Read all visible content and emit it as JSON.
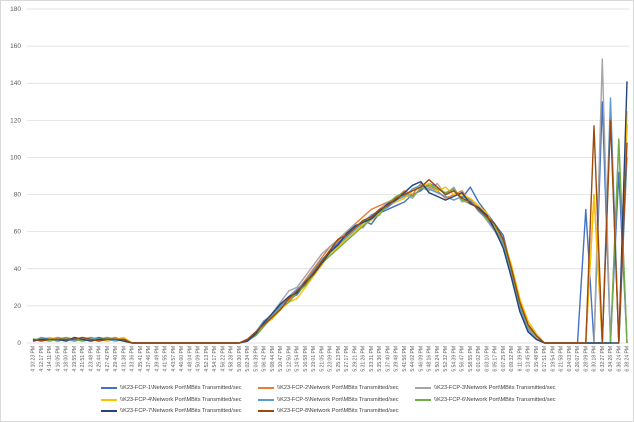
{
  "chart_data": {
    "type": "line",
    "title": "",
    "xlabel": "",
    "ylabel": "",
    "ylim": [
      0,
      180
    ],
    "y_ticks": [
      "0",
      "20",
      "40",
      "60",
      "80",
      "100",
      "120",
      "140",
      "160",
      "180"
    ],
    "grid": "horizontal",
    "legend_position": "bottom",
    "x_tick_labels": [
      "4:10:23 PM",
      "4:12:17 PM",
      "4:14:11 PM",
      "4:16:05 PM",
      "4:18:00 PM",
      "4:19:55 PM",
      "4:21:51 PM",
      "4:23:48 PM",
      "4:25:44 PM",
      "4:27:42 PM",
      "4:29:40 PM",
      "4:31:38 PM",
      "4:33:36 PM",
      "4:35:41 PM",
      "4:37:46 PM",
      "4:39:49 PM",
      "4:41:55 PM",
      "4:43:57 PM",
      "4:46:00 PM",
      "4:48:04 PM",
      "4:50:09 PM",
      "4:52:13 PM",
      "4:54:17 PM",
      "4:56:22 PM",
      "4:58:28 PM",
      "5:00:30 PM",
      "5:02:34 PM",
      "5:04:39 PM",
      "5:06:42 PM",
      "5:08:44 PM",
      "5:10:47 PM",
      "5:12:50 PM",
      "5:14:54 PM",
      "5:16:58 PM",
      "5:19:01 PM",
      "5:21:05 PM",
      "5:23:09 PM",
      "5:25:13 PM",
      "5:27:17 PM",
      "5:29:21 PM",
      "5:31:26 PM",
      "5:33:31 PM",
      "5:35:36 PM",
      "5:37:40 PM",
      "5:39:48 PM",
      "5:41:56 PM",
      "5:44:02 PM",
      "5:46:09 PM",
      "5:48:16 PM",
      "5:50:24 PM",
      "5:52:32 PM",
      "5:54:39 PM",
      "5:56:47 PM",
      "5:58:55 PM",
      "6:01:02 PM",
      "6:03:10 PM",
      "6:05:17 PM",
      "6:07:25 PM",
      "6:09:32 PM",
      "6:11:39 PM",
      "6:13:45 PM",
      "6:15:48 PM",
      "6:17:51 PM",
      "6:19:54 PM",
      "6:21:58 PM",
      "6:24:03 PM",
      "6:26:07 PM",
      "6:28:09 PM",
      "6:30:18 PM",
      "6:32:27 PM",
      "6:34:26 PM",
      "6:36:24 PM",
      "6:38:24 PM"
    ],
    "series": [
      {
        "name": "\\\\K23-FCP-1\\Network Port\\MBits Transmitted/sec",
        "color": "#4472c4",
        "values": [
          1,
          2,
          2,
          1,
          2,
          2,
          1,
          2,
          3,
          2,
          2,
          1,
          0,
          0,
          0,
          0,
          0,
          0,
          0,
          0,
          0,
          0,
          0,
          0,
          0,
          0,
          1,
          5,
          10,
          14,
          20,
          24,
          26,
          32,
          38,
          44,
          50,
          54,
          58,
          62,
          66,
          64,
          70,
          72,
          74,
          76,
          80,
          82,
          86,
          84,
          80,
          82,
          78,
          84,
          76,
          70,
          64,
          58,
          40,
          22,
          10,
          4,
          0,
          0,
          0,
          0,
          0,
          72,
          0,
          130,
          0,
          92,
          0
        ]
      },
      {
        "name": "\\\\K23-FCP-2\\Network Port\\MBits Transmitted/sec",
        "color": "#ed7d31",
        "values": [
          2,
          1,
          2,
          3,
          2,
          1,
          2,
          2,
          1,
          2,
          3,
          1,
          0,
          0,
          0,
          0,
          0,
          0,
          0,
          0,
          0,
          0,
          0,
          0,
          0,
          0,
          2,
          6,
          11,
          15,
          21,
          23,
          28,
          34,
          40,
          46,
          52,
          55,
          60,
          64,
          68,
          72,
          74,
          76,
          78,
          82,
          80,
          86,
          84,
          82,
          78,
          80,
          82,
          76,
          74,
          68,
          62,
          54,
          36,
          18,
          8,
          2,
          0,
          0,
          0,
          0,
          0,
          0,
          80,
          0,
          126,
          0,
          118
        ]
      },
      {
        "name": "\\\\K23-FCP-3\\Network Port\\MBits Transmitted/sec",
        "color": "#a5a5a5",
        "values": [
          1,
          2,
          1,
          2,
          1,
          2,
          2,
          1,
          2,
          1,
          2,
          2,
          0,
          0,
          0,
          0,
          0,
          0,
          0,
          0,
          0,
          0,
          0,
          0,
          0,
          0,
          1,
          4,
          9,
          16,
          22,
          28,
          30,
          36,
          42,
          48,
          52,
          56,
          60,
          64,
          62,
          68,
          72,
          76,
          78,
          80,
          78,
          84,
          82,
          86,
          80,
          84,
          76,
          78,
          72,
          66,
          60,
          52,
          38,
          20,
          9,
          3,
          0,
          0,
          0,
          0,
          0,
          0,
          0,
          153,
          0,
          108,
          0
        ]
      },
      {
        "name": "\\\\K23-FCP-4\\Network Port\\MBits Transmitted/sec",
        "color": "#ffc000",
        "values": [
          2,
          2,
          3,
          2,
          1,
          2,
          2,
          2,
          2,
          1,
          2,
          3,
          0,
          0,
          0,
          0,
          0,
          0,
          0,
          0,
          0,
          0,
          0,
          0,
          0,
          0,
          2,
          5,
          10,
          13,
          18,
          22,
          24,
          30,
          36,
          42,
          48,
          52,
          56,
          60,
          64,
          66,
          70,
          74,
          76,
          78,
          82,
          84,
          86,
          82,
          84,
          80,
          80,
          78,
          74,
          70,
          62,
          56,
          42,
          24,
          12,
          5,
          0,
          0,
          0,
          0,
          0,
          0,
          80,
          0,
          124,
          0,
          125
        ]
      },
      {
        "name": "\\\\K23-FCP-5\\Network Port\\MBits Transmitted/sec",
        "color": "#5b9bd5",
        "values": [
          1,
          3,
          2,
          2,
          2,
          1,
          2,
          3,
          2,
          2,
          1,
          2,
          0,
          0,
          0,
          0,
          0,
          0,
          0,
          0,
          0,
          0,
          0,
          0,
          0,
          0,
          1,
          6,
          12,
          15,
          20,
          25,
          29,
          33,
          39,
          45,
          49,
          53,
          57,
          61,
          65,
          69,
          71,
          73,
          77,
          79,
          83,
          85,
          83,
          81,
          79,
          77,
          79,
          77,
          71,
          67,
          61,
          53,
          37,
          19,
          7,
          2,
          0,
          0,
          0,
          0,
          0,
          0,
          0,
          0,
          132,
          0,
          100
        ]
      },
      {
        "name": "\\\\K23-FCP-6\\Network Port\\MBits Transmitted/sec",
        "color": "#70ad47",
        "values": [
          2,
          2,
          1,
          2,
          3,
          2,
          1,
          2,
          2,
          3,
          2,
          1,
          0,
          0,
          0,
          0,
          0,
          0,
          0,
          0,
          0,
          0,
          0,
          0,
          0,
          0,
          2,
          4,
          9,
          14,
          19,
          22,
          27,
          31,
          37,
          43,
          47,
          51,
          55,
          59,
          63,
          67,
          69,
          75,
          79,
          81,
          79,
          83,
          85,
          83,
          81,
          83,
          77,
          75,
          73,
          67,
          63,
          55,
          39,
          21,
          9,
          4,
          0,
          0,
          0,
          0,
          0,
          0,
          0,
          0,
          0,
          110,
          0
        ]
      },
      {
        "name": "\\\\K23-FCP-7\\Network Port\\MBits Transmitted/sec",
        "color": "#264478",
        "values": [
          1,
          2,
          2,
          2,
          1,
          3,
          2,
          1,
          2,
          2,
          2,
          1,
          0,
          0,
          0,
          0,
          0,
          0,
          0,
          0,
          0,
          0,
          0,
          0,
          0,
          0,
          1,
          5,
          11,
          16,
          21,
          25,
          27,
          33,
          37,
          43,
          49,
          53,
          59,
          63,
          65,
          67,
          71,
          75,
          77,
          81,
          85,
          87,
          81,
          79,
          77,
          79,
          81,
          75,
          73,
          69,
          61,
          51,
          35,
          17,
          6,
          2,
          0,
          0,
          0,
          0,
          0,
          0,
          0,
          0,
          0,
          0,
          141
        ]
      },
      {
        "name": "\\\\K23-FCP-8\\Network Port\\MBits Transmitted/sec",
        "color": "#9e480e",
        "values": [
          2,
          1,
          2,
          2,
          2,
          2,
          3,
          2,
          1,
          2,
          2,
          2,
          0,
          0,
          0,
          0,
          0,
          0,
          0,
          0,
          0,
          0,
          0,
          0,
          0,
          0,
          2,
          6,
          10,
          14,
          18,
          24,
          28,
          32,
          38,
          44,
          50,
          56,
          58,
          62,
          66,
          68,
          72,
          74,
          78,
          80,
          82,
          84,
          88,
          84,
          80,
          82,
          78,
          76,
          72,
          68,
          64,
          56,
          40,
          22,
          10,
          4,
          0,
          0,
          0,
          0,
          0,
          0,
          117,
          0,
          120,
          0,
          108
        ]
      }
    ]
  }
}
